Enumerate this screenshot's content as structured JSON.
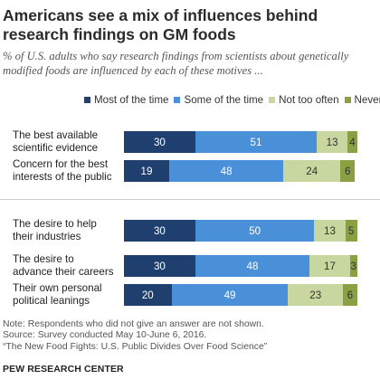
{
  "title": "Americans see a mix of influences behind research findings on GM foods",
  "subtitle": "% of U.S. adults who say research findings from scientists about genetically modified foods are influenced by each of these motives ...",
  "chart_data": {
    "type": "bar",
    "orientation": "horizontal",
    "stacked": true,
    "legend_position": "top",
    "grid": false,
    "xlim": [
      0,
      100
    ],
    "colors": [
      "#1f3f6e",
      "#4a90d9",
      "#c8d7a0",
      "#8aa043"
    ],
    "legend": [
      "Most of the time",
      "Some of the time",
      "Not too often",
      "Never"
    ],
    "categories": [
      [
        "The best available",
        "scientific evidence"
      ],
      [
        "Concern for the best",
        "interests of the public"
      ],
      [
        "The desire to help",
        "their industries"
      ],
      [
        "The desire to",
        "advance their careers"
      ],
      [
        "Their own personal",
        "political leanings"
      ]
    ],
    "series": [
      {
        "name": "Most of the time",
        "values": [
          30,
          19,
          30,
          30,
          20
        ]
      },
      {
        "name": "Some of the time",
        "values": [
          51,
          48,
          50,
          48,
          49
        ]
      },
      {
        "name": "Not too often",
        "values": [
          13,
          24,
          13,
          17,
          23
        ]
      },
      {
        "name": "Never",
        "values": [
          4,
          6,
          5,
          3,
          6
        ]
      }
    ]
  },
  "notes": [
    "Note: Respondents who did not give an answer are not shown.",
    "Source: Survey conducted May 10-June 6, 2016.",
    "“The New Food Fights: U.S. Public Divides Over Food Science”"
  ],
  "source": "PEW RESEARCH CENTER"
}
